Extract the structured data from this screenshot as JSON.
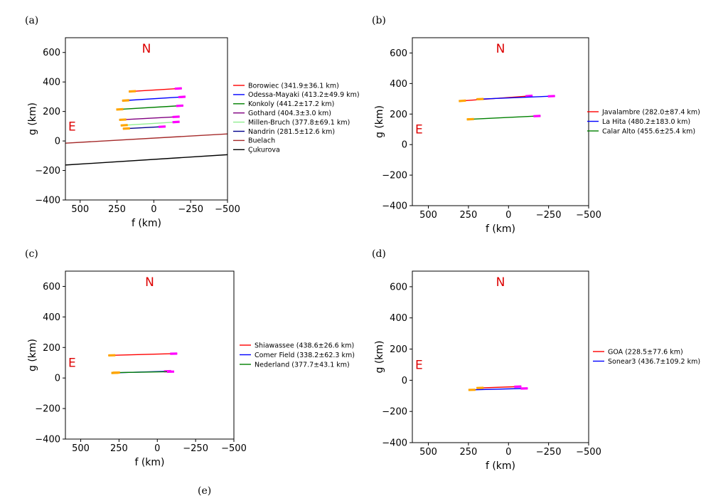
{
  "colors": {
    "start_marker": "#ffa500",
    "end_marker": "#ff00ff",
    "compass": "#dd0000",
    "axis": "#000000"
  },
  "compass": {
    "north": "N",
    "east": "E"
  },
  "bottom_label": "(e)",
  "chart_data": [
    {
      "type": "line",
      "panel_label": "(a)",
      "xlabel": "f (km)",
      "ylabel": "g (km)",
      "xlim": [
        600,
        -500
      ],
      "ylim": [
        -400,
        700
      ],
      "xticks": [
        500,
        250,
        0,
        -250,
        -500
      ],
      "yticks": [
        -400,
        -200,
        0,
        200,
        400,
        600
      ],
      "legend_position": "right",
      "series": [
        {
          "name": "Borowiec (341.9±36.1 km)",
          "color": "#ff0000",
          "x": [
            170,
            -190
          ],
          "y": [
            335,
            357
          ],
          "markers": true
        },
        {
          "name": "Odessa-Mayaki (413.2±49.9 km)",
          "color": "#0000ff",
          "x": [
            215,
            -215
          ],
          "y": [
            273,
            300
          ],
          "markers": true
        },
        {
          "name": "Konkoly (441.2±17.2 km)",
          "color": "#008000",
          "x": [
            255,
            -200
          ],
          "y": [
            213,
            240
          ],
          "markers": true
        },
        {
          "name": "Gothard (404.3±3.0 km)",
          "color": "#800080",
          "x": [
            235,
            -175
          ],
          "y": [
            143,
            165
          ],
          "markers": true
        },
        {
          "name": "Millen-Bruch (377.8±69.1 km)",
          "color": "#90ee90",
          "x": [
            225,
            -175
          ],
          "y": [
            105,
            130
          ],
          "markers": true
        },
        {
          "name": "Nandrin (281.5±12.6 km)",
          "color": "#00008b",
          "x": [
            210,
            -80
          ],
          "y": [
            83,
            98
          ],
          "markers": true
        },
        {
          "name": "Buelach",
          "color": "#a52a2a",
          "x": [
            600,
            -500
          ],
          "y": [
            -15,
            48
          ],
          "markers": false
        },
        {
          "name": "Çukurova",
          "color": "#000000",
          "x": [
            600,
            -500
          ],
          "y": [
            -163,
            -93
          ],
          "markers": false
        }
      ]
    },
    {
      "type": "line",
      "panel_label": "(b)",
      "xlabel": "f (km)",
      "ylabel": "g (km)",
      "xlim": [
        600,
        -500
      ],
      "ylim": [
        -400,
        700
      ],
      "xticks": [
        500,
        250,
        0,
        -250,
        -500
      ],
      "yticks": [
        -400,
        -200,
        0,
        200,
        400,
        600
      ],
      "legend_position": "right",
      "series": [
        {
          "name": "Javalambre (282.0±87.4 km)",
          "color": "#ff0000",
          "x": [
            310,
            -150
          ],
          "y": [
            285,
            320
          ],
          "markers": true
        },
        {
          "name": "La Hita (480.2±183.0 km)",
          "color": "#0000ff",
          "x": [
            200,
            -290
          ],
          "y": [
            297,
            318
          ],
          "markers": true
        },
        {
          "name": "Calar Alto (455.6±25.4 km)",
          "color": "#008000",
          "x": [
            260,
            -200
          ],
          "y": [
            165,
            188
          ],
          "markers": true
        }
      ]
    },
    {
      "type": "line",
      "panel_label": "(c)",
      "xlabel": "f (km)",
      "ylabel": "g (km)",
      "xlim": [
        600,
        -500
      ],
      "ylim": [
        -400,
        700
      ],
      "xticks": [
        500,
        250,
        0,
        -250,
        -500
      ],
      "yticks": [
        -400,
        -200,
        0,
        200,
        400,
        600
      ],
      "legend_position": "right",
      "series": [
        {
          "name": "Shiawassee (438.6±26.6 km)",
          "color": "#ff0000",
          "x": [
            320,
            -130
          ],
          "y": [
            148,
            160
          ],
          "markers": true
        },
        {
          "name": "Comer Field (338.2±62.3 km)",
          "color": "#0000ff",
          "x": [
            300,
            -90
          ],
          "y": [
            33,
            45
          ],
          "markers": true
        },
        {
          "name": "Nederland (377.7±43.1 km)",
          "color": "#008000",
          "x": [
            290,
            -110
          ],
          "y": [
            35,
            42
          ],
          "markers": true
        }
      ]
    },
    {
      "type": "line",
      "panel_label": "(d)",
      "xlabel": "f (km)",
      "ylabel": "g (km)",
      "xlim": [
        600,
        -500
      ],
      "ylim": [
        -400,
        700
      ],
      "xticks": [
        500,
        250,
        0,
        -250,
        -500
      ],
      "yticks": [
        -400,
        -200,
        0,
        200,
        400,
        600
      ],
      "legend_position": "right",
      "series": [
        {
          "name": "GOA (228.5±77.6 km)",
          "color": "#ff0000",
          "x": [
            200,
            -80
          ],
          "y": [
            -50,
            -40
          ],
          "markers": true
        },
        {
          "name": "Sonear3 (436.7±109.2 km)",
          "color": "#0000ff",
          "x": [
            250,
            -120
          ],
          "y": [
            -62,
            -52
          ],
          "markers": true
        }
      ]
    }
  ]
}
